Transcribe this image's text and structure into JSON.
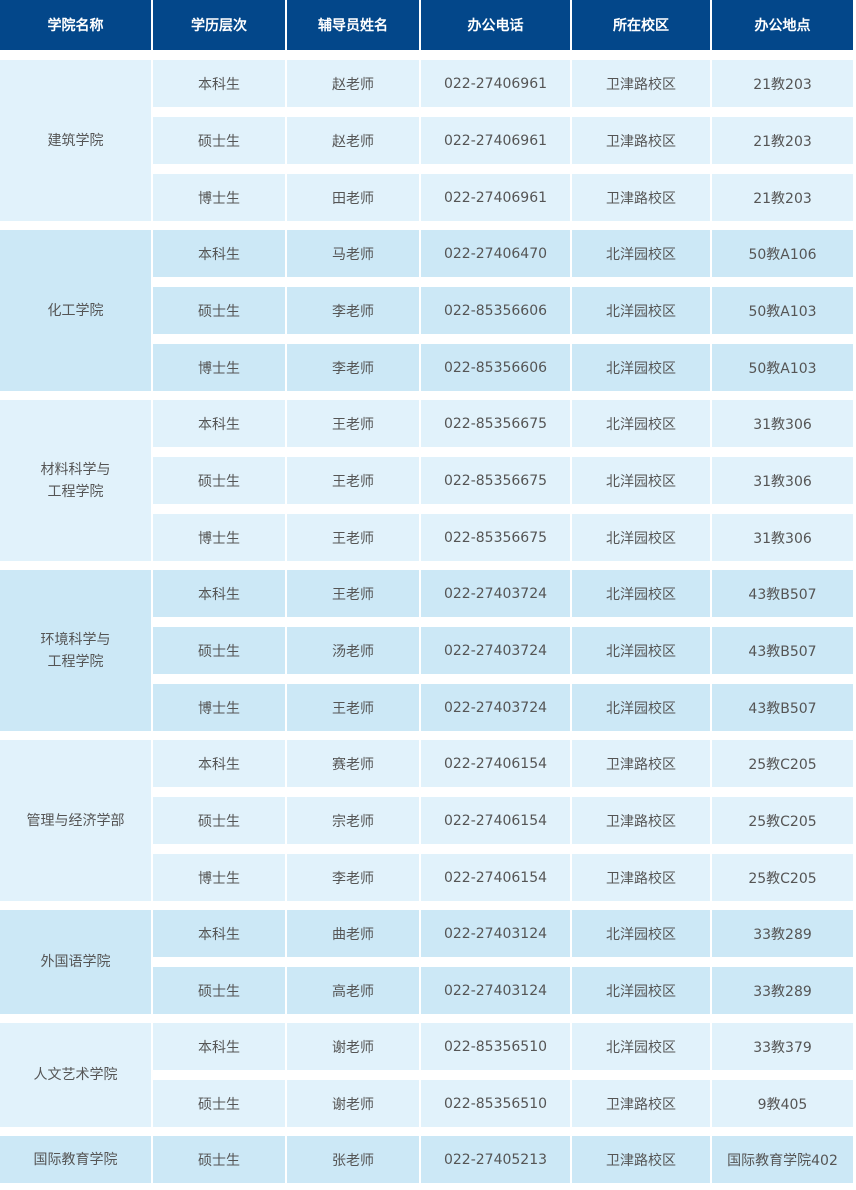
{
  "headers": [
    "学院名称",
    "学历层次",
    "辅导员姓名",
    "办公电话",
    "所在校区",
    "办公地点"
  ],
  "colors": {
    "header_bg": "#03478a",
    "row_light": "#e1f2fb",
    "row_dark": "#cce8f6"
  },
  "groups": [
    {
      "college": "建筑学院",
      "rows": [
        [
          "本科生",
          "赵老师",
          "022-27406961",
          "卫津路校区",
          "21教203"
        ],
        [
          "硕士生",
          "赵老师",
          "022-27406961",
          "卫津路校区",
          "21教203"
        ],
        [
          "博士生",
          "田老师",
          "022-27406961",
          "卫津路校区",
          "21教203"
        ]
      ]
    },
    {
      "college": "化工学院",
      "rows": [
        [
          "本科生",
          "马老师",
          "022-27406470",
          "北洋园校区",
          "50教A106"
        ],
        [
          "硕士生",
          "李老师",
          "022-85356606",
          "北洋园校区",
          "50教A103"
        ],
        [
          "博士生",
          "李老师",
          "022-85356606",
          "北洋园校区",
          "50教A103"
        ]
      ]
    },
    {
      "college": "材料科学与\n工程学院",
      "rows": [
        [
          "本科生",
          "王老师",
          "022-85356675",
          "北洋园校区",
          "31教306"
        ],
        [
          "硕士生",
          "王老师",
          "022-85356675",
          "北洋园校区",
          "31教306"
        ],
        [
          "博士生",
          "王老师",
          "022-85356675",
          "北洋园校区",
          "31教306"
        ]
      ]
    },
    {
      "college": "环境科学与\n工程学院",
      "rows": [
        [
          "本科生",
          "王老师",
          "022-27403724",
          "北洋园校区",
          "43教B507"
        ],
        [
          "硕士生",
          "汤老师",
          "022-27403724",
          "北洋园校区",
          "43教B507"
        ],
        [
          "博士生",
          "王老师",
          "022-27403724",
          "北洋园校区",
          "43教B507"
        ]
      ]
    },
    {
      "college": "管理与经济学部",
      "rows": [
        [
          "本科生",
          "赛老师",
          "022-27406154",
          "卫津路校区",
          "25教C205"
        ],
        [
          "硕士生",
          "宗老师",
          "022-27406154",
          "卫津路校区",
          "25教C205"
        ],
        [
          "博士生",
          "李老师",
          "022-27406154",
          "卫津路校区",
          "25教C205"
        ]
      ]
    },
    {
      "college": "外国语学院",
      "rows": [
        [
          "本科生",
          "曲老师",
          "022-27403124",
          "北洋园校区",
          "33教289"
        ],
        [
          "硕士生",
          "高老师",
          "022-27403124",
          "北洋园校区",
          "33教289"
        ]
      ]
    },
    {
      "college": "人文艺术学院",
      "rows": [
        [
          "本科生",
          "谢老师",
          "022-85356510",
          "北洋园校区",
          "33教379"
        ],
        [
          "硕士生",
          "谢老师",
          "022-85356510",
          "卫津路校区",
          "9教405"
        ]
      ]
    },
    {
      "college": "国际教育学院",
      "rows": [
        [
          "硕士生",
          "张老师",
          "022-27405213",
          "卫津路校区",
          "国际教育学院402"
        ]
      ]
    }
  ]
}
